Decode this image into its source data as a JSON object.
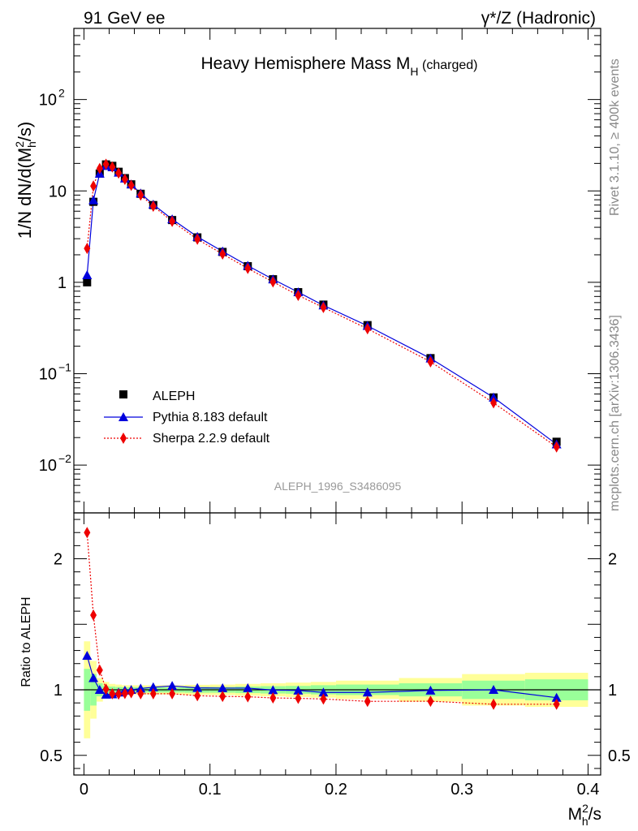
{
  "header": {
    "left_title": "91 GeV ee",
    "right_title": "γ*/Z (Hadronic)"
  },
  "side_labels": {
    "rivet": "Rivet 3.1.10, ≥ 400k events",
    "mcplots": "mcplots.cern.ch [arXiv:1306.3436]"
  },
  "chart_data": {
    "type": "scatter",
    "title": "Heavy Hemisphere Mass M",
    "title_sub": "H",
    "title_suffix": " (charged)",
    "analysis_label": "ALEPH_1996_S3486095",
    "xlabel": "M",
    "xlabel_sup": "2",
    "xlabel_sub": "h",
    "xlabel_suffix": "/s",
    "ylabel": "1/N dN/d(M",
    "ylabel_sup": "2",
    "ylabel_sub": "h",
    "ylabel_suffix": "/s)",
    "ratio_ylabel": "Ratio to ALEPH",
    "xlim": [
      -0.008,
      0.41
    ],
    "ylim": [
      0.003,
      600
    ],
    "ratio_ylim": [
      0.35,
      2.35
    ],
    "x_ticks": [
      {
        "value": 0,
        "label": "0"
      },
      {
        "value": 0.1,
        "label": "0.1"
      },
      {
        "value": 0.2,
        "label": "0.2"
      },
      {
        "value": 0.3,
        "label": "0.3"
      },
      {
        "value": 0.4,
        "label": "0.4"
      }
    ],
    "y_ticks": [
      {
        "value": 0.01,
        "base": "10",
        "exp": "−2"
      },
      {
        "value": 0.1,
        "base": "10",
        "exp": "−1"
      },
      {
        "value": 1,
        "base": "1",
        "exp": ""
      },
      {
        "value": 10,
        "base": "10",
        "exp": ""
      },
      {
        "value": 100,
        "base": "10",
        "exp": "2"
      }
    ],
    "ratio_ticks": [
      {
        "value": 0.5,
        "label": "0.5"
      },
      {
        "value": 1,
        "label": "1"
      },
      {
        "value": 2,
        "label": "2"
      }
    ],
    "legend_position": "lower-left",
    "series": [
      {
        "name": "ALEPH",
        "role": "data",
        "color": "#000000",
        "marker": "square",
        "x": [
          0.0025,
          0.0075,
          0.0125,
          0.0175,
          0.0225,
          0.0275,
          0.0325,
          0.0375,
          0.045,
          0.055,
          0.07,
          0.09,
          0.11,
          0.13,
          0.15,
          0.17,
          0.19,
          0.225,
          0.275,
          0.325,
          0.375
        ],
        "y": [
          1.0,
          7.6,
          15.5,
          19.5,
          18.8,
          16.2,
          13.8,
          11.8,
          9.3,
          7.0,
          4.8,
          3.1,
          2.15,
          1.5,
          1.08,
          0.78,
          0.57,
          0.34,
          0.148,
          0.055,
          0.018
        ]
      },
      {
        "name": "Pythia 8.183 default",
        "role": "mc",
        "color": "#0000dd",
        "marker": "triangle",
        "linestyle": "solid",
        "x": [
          0.0025,
          0.0075,
          0.0125,
          0.0175,
          0.0225,
          0.0275,
          0.0325,
          0.0375,
          0.045,
          0.055,
          0.07,
          0.09,
          0.11,
          0.13,
          0.15,
          0.17,
          0.19,
          0.225,
          0.275,
          0.325,
          0.375
        ],
        "y": [
          1.2,
          7.9,
          15.5,
          18.8,
          18.2,
          15.9,
          13.7,
          11.8,
          9.4,
          7.1,
          4.9,
          3.15,
          2.18,
          1.52,
          1.08,
          0.78,
          0.56,
          0.334,
          0.147,
          0.055,
          0.0169
        ]
      },
      {
        "name": "Sherpa 2.2.9 default",
        "role": "mc",
        "color": "#ee0000",
        "marker": "diamond",
        "linestyle": "dotted",
        "x": [
          0.0025,
          0.0075,
          0.0125,
          0.0175,
          0.0225,
          0.0275,
          0.0325,
          0.0375,
          0.045,
          0.055,
          0.07,
          0.09,
          0.11,
          0.13,
          0.15,
          0.17,
          0.19,
          0.225,
          0.275,
          0.325,
          0.375
        ],
        "y": [
          2.35,
          11.3,
          17.6,
          19.6,
          18.3,
          15.7,
          13.4,
          11.5,
          9.0,
          6.8,
          4.65,
          2.96,
          2.04,
          1.42,
          1.01,
          0.72,
          0.53,
          0.31,
          0.135,
          0.048,
          0.0158
        ]
      }
    ],
    "ratio": {
      "x": [
        0.0025,
        0.0075,
        0.0125,
        0.0175,
        0.0225,
        0.0275,
        0.0325,
        0.0375,
        0.045,
        0.055,
        0.07,
        0.09,
        0.11,
        0.13,
        0.15,
        0.17,
        0.19,
        0.225,
        0.275,
        0.325,
        0.375
      ],
      "pythia": [
        1.26,
        1.09,
        1.0,
        0.964,
        0.966,
        0.98,
        0.995,
        1.0,
        1.01,
        1.02,
        1.03,
        1.015,
        1.013,
        1.013,
        0.998,
        0.995,
        0.98,
        0.98,
        0.995,
        1.0,
        0.94
      ],
      "sherpa": [
        2.2,
        1.57,
        1.15,
        1.005,
        0.97,
        0.968,
        0.972,
        0.978,
        0.97,
        0.97,
        0.97,
        0.955,
        0.95,
        0.947,
        0.938,
        0.935,
        0.93,
        0.912,
        0.913,
        0.89,
        0.89
      ],
      "band_edges": [
        0,
        0.005,
        0.01,
        0.015,
        0.02,
        0.025,
        0.03,
        0.035,
        0.04,
        0.05,
        0.06,
        0.08,
        0.1,
        0.12,
        0.14,
        0.16,
        0.18,
        0.2,
        0.25,
        0.3,
        0.35,
        0.4
      ],
      "inner_band_half": [
        0.16,
        0.12,
        0.05,
        0.03,
        0.025,
        0.022,
        0.02,
        0.02,
        0.02,
        0.02,
        0.02,
        0.022,
        0.022,
        0.025,
        0.028,
        0.03,
        0.035,
        0.04,
        0.05,
        0.07,
        0.08
      ],
      "outer_band_half": [
        0.37,
        0.22,
        0.09,
        0.06,
        0.045,
        0.04,
        0.035,
        0.035,
        0.035,
        0.035,
        0.035,
        0.038,
        0.04,
        0.045,
        0.05,
        0.055,
        0.06,
        0.07,
        0.09,
        0.12,
        0.13
      ]
    }
  },
  "colors": {
    "band_inner": "#99ff99",
    "band_outer": "#ffff99",
    "side_text": "#888888",
    "analysis_text": "#999999"
  }
}
